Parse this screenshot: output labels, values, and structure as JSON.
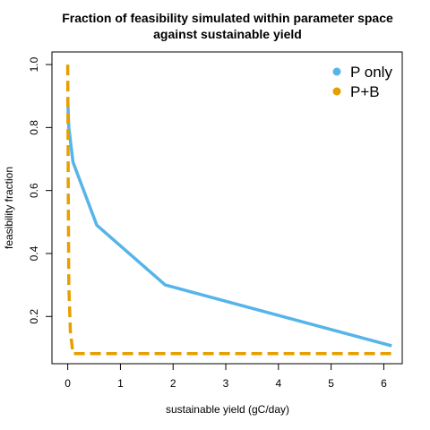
{
  "chart_data": {
    "type": "line",
    "title_line1": "Fraction of feasibility simulated within parameter space",
    "title_line2": "against sustainable yield",
    "xlabel": "sustainable yield (gC/day)",
    "ylabel": "feasibility fraction",
    "xlim": [
      -0.3,
      6.35
    ],
    "ylim": [
      0.05,
      1.04
    ],
    "xticks": [
      0,
      1,
      2,
      3,
      4,
      5,
      6
    ],
    "yticks": [
      0.2,
      0.4,
      0.6,
      0.8,
      1.0
    ],
    "ytick_labels": [
      "0.2",
      "0.4",
      "0.6",
      "0.8",
      "1.0"
    ],
    "legend_position": "top-right",
    "series": [
      {
        "name": "P only",
        "color": "#56B4E9",
        "style": "solid",
        "x": [
          0.0,
          0.02,
          0.1,
          0.55,
          1.85,
          6.15
        ],
        "y": [
          0.89,
          0.8,
          0.69,
          0.49,
          0.3,
          0.107
        ]
      },
      {
        "name": "P+B",
        "color": "#E69F00",
        "style": "dashed",
        "x": [
          0.0,
          0.01,
          0.02,
          0.05,
          0.1,
          6.15
        ],
        "y": [
          1.0,
          0.6,
          0.3,
          0.15,
          0.082,
          0.082
        ]
      }
    ]
  }
}
